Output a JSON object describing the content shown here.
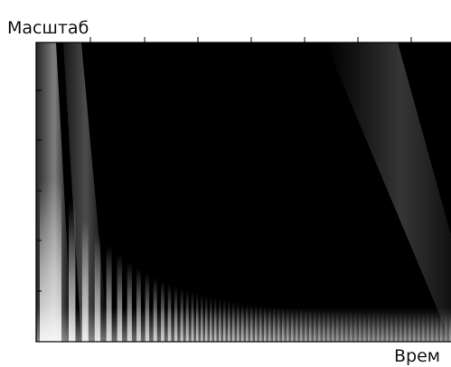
{
  "y_label": "Масштаб",
  "x_label": "Врем"
}
